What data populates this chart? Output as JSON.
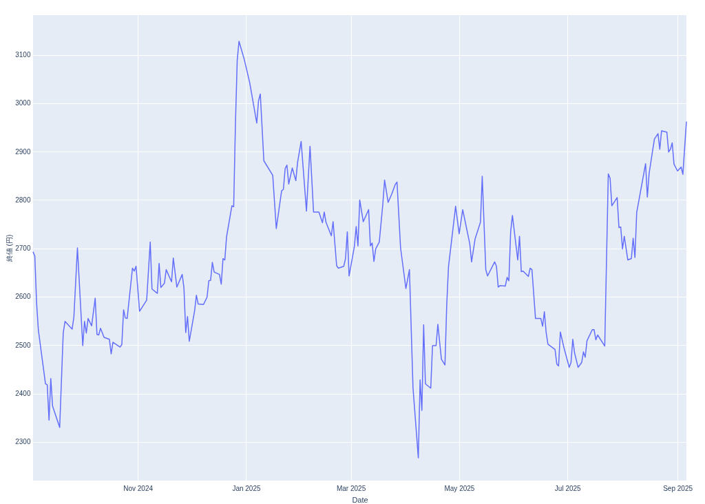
{
  "chart_data": {
    "type": "line",
    "xlabel": "Date",
    "ylabel": "終値 (円)",
    "grid": true,
    "line_style": "solid",
    "marker": "none",
    "xlim": [
      "2024-09-03",
      "2025-09-06"
    ],
    "xticks": [
      {
        "value": "2024-11-01",
        "label": "Nov 2024"
      },
      {
        "value": "2025-01-01",
        "label": "Jan 2025"
      },
      {
        "value": "2025-03-01",
        "label": "Mar 2025"
      },
      {
        "value": "2025-05-01",
        "label": "May 2025"
      },
      {
        "value": "2025-07-01",
        "label": "Jul 2025"
      },
      {
        "value": "2025-09-01",
        "label": "Sep 2025"
      }
    ],
    "ylim": [
      2220,
      3182
    ],
    "yticks": [
      2300,
      2400,
      2500,
      2600,
      2700,
      2800,
      2900,
      3000,
      3100
    ],
    "x": [
      "2024-09-03",
      "2024-09-04",
      "2024-09-05",
      "2024-09-06",
      "2024-09-10",
      "2024-09-11",
      "2024-09-12",
      "2024-09-13",
      "2024-09-14",
      "2024-09-18",
      "2024-09-20",
      "2024-09-21",
      "2024-09-25",
      "2024-09-26",
      "2024-09-28",
      "2024-10-01",
      "2024-10-02",
      "2024-10-03",
      "2024-10-04",
      "2024-10-06",
      "2024-10-08",
      "2024-10-09",
      "2024-10-10",
      "2024-10-11",
      "2024-10-13",
      "2024-10-16",
      "2024-10-17",
      "2024-10-18",
      "2024-10-22",
      "2024-10-23",
      "2024-10-24",
      "2024-10-25",
      "2024-10-26",
      "2024-10-29",
      "2024-10-30",
      "2024-10-31",
      "2024-11-02",
      "2024-11-06",
      "2024-11-08",
      "2024-11-09",
      "2024-11-12",
      "2024-11-13",
      "2024-11-14",
      "2024-11-16",
      "2024-11-17",
      "2024-11-20",
      "2024-11-21",
      "2024-11-23",
      "2024-11-26",
      "2024-11-27",
      "2024-11-28",
      "2024-11-29",
      "2024-11-30",
      "2024-12-03",
      "2024-12-04",
      "2024-12-05",
      "2024-12-08",
      "2024-12-10",
      "2024-12-11",
      "2024-12-12",
      "2024-12-13",
      "2024-12-14",
      "2024-12-17",
      "2024-12-18",
      "2024-12-19",
      "2024-12-20",
      "2024-12-21",
      "2024-12-24",
      "2024-12-25",
      "2024-12-26",
      "2024-12-27",
      "2024-12-28",
      "2024-12-31",
      "2025-01-03",
      "2025-01-07",
      "2025-01-08",
      "2025-01-09",
      "2025-01-11",
      "2025-01-16",
      "2025-01-18",
      "2025-01-21",
      "2025-01-22",
      "2025-01-23",
      "2025-01-24",
      "2025-01-25",
      "2025-01-27",
      "2025-01-29",
      "2025-01-30",
      "2025-02-01",
      "2025-02-04",
      "2025-02-06",
      "2025-02-08",
      "2025-02-11",
      "2025-02-13",
      "2025-02-14",
      "2025-02-15",
      "2025-02-18",
      "2025-02-19",
      "2025-02-21",
      "2025-02-22",
      "2025-02-25",
      "2025-02-26",
      "2025-02-27",
      "2025-02-28",
      "2025-03-03",
      "2025-03-04",
      "2025-03-05",
      "2025-03-06",
      "2025-03-08",
      "2025-03-11",
      "2025-03-12",
      "2025-03-13",
      "2025-03-14",
      "2025-03-15",
      "2025-03-17",
      "2025-03-19",
      "2025-03-20",
      "2025-03-22",
      "2025-03-24",
      "2025-03-26",
      "2025-03-27",
      "2025-03-29",
      "2025-04-01",
      "2025-04-03",
      "2025-04-05",
      "2025-04-08",
      "2025-04-09",
      "2025-04-10",
      "2025-04-11",
      "2025-04-12",
      "2025-04-15",
      "2025-04-16",
      "2025-04-18",
      "2025-04-19",
      "2025-04-21",
      "2025-04-23",
      "2025-04-24",
      "2025-04-25",
      "2025-04-29",
      "2025-05-01",
      "2025-05-03",
      "2025-05-07",
      "2025-05-08",
      "2025-05-10",
      "2025-05-13",
      "2025-05-14",
      "2025-05-16",
      "2025-05-17",
      "2025-05-21",
      "2025-05-22",
      "2025-05-23",
      "2025-05-24",
      "2025-05-27",
      "2025-05-28",
      "2025-05-29",
      "2025-05-30",
      "2025-05-31",
      "2025-06-03",
      "2025-06-04",
      "2025-06-05",
      "2025-06-06",
      "2025-06-09",
      "2025-06-10",
      "2025-06-11",
      "2025-06-13",
      "2025-06-16",
      "2025-06-17",
      "2025-06-18",
      "2025-06-19",
      "2025-06-20",
      "2025-06-24",
      "2025-06-25",
      "2025-06-26",
      "2025-06-27",
      "2025-06-29",
      "2025-07-02",
      "2025-07-03",
      "2025-07-04",
      "2025-07-05",
      "2025-07-07",
      "2025-07-09",
      "2025-07-10",
      "2025-07-11",
      "2025-07-12",
      "2025-07-15",
      "2025-07-16",
      "2025-07-17",
      "2025-07-18",
      "2025-07-22",
      "2025-07-24",
      "2025-07-25",
      "2025-07-26",
      "2025-07-29",
      "2025-07-30",
      "2025-07-31",
      "2025-08-01",
      "2025-08-02",
      "2025-08-04",
      "2025-08-06",
      "2025-08-07",
      "2025-08-08",
      "2025-08-09",
      "2025-08-14",
      "2025-08-15",
      "2025-08-16",
      "2025-08-18",
      "2025-08-19",
      "2025-08-21",
      "2025-08-22",
      "2025-08-23",
      "2025-08-26",
      "2025-08-27",
      "2025-08-28",
      "2025-08-29",
      "2025-08-30",
      "2025-09-01",
      "2025-09-03",
      "2025-09-04",
      "2025-09-06"
    ],
    "series": [
      {
        "color": "#636efa",
        "values": [
          2693,
          2684,
          2587,
          2531,
          2420,
          2418,
          2345,
          2431,
          2374,
          2330,
          2525,
          2549,
          2533,
          2558,
          2701,
          2499,
          2549,
          2525,
          2555,
          2540,
          2597,
          2522,
          2521,
          2535,
          2516,
          2512,
          2482,
          2506,
          2496,
          2501,
          2573,
          2556,
          2555,
          2659,
          2653,
          2663,
          2570,
          2593,
          2713,
          2616,
          2607,
          2669,
          2619,
          2628,
          2656,
          2631,
          2680,
          2620,
          2646,
          2618,
          2526,
          2559,
          2508,
          2571,
          2603,
          2585,
          2584,
          2599,
          2633,
          2634,
          2671,
          2651,
          2646,
          2626,
          2679,
          2676,
          2724,
          2788,
          2786,
          2958,
          3089,
          3128,
          3090,
          3043,
          2959,
          3005,
          3019,
          2881,
          2851,
          2741,
          2819,
          2822,
          2865,
          2872,
          2833,
          2866,
          2840,
          2878,
          2921,
          2777,
          2911,
          2775,
          2775,
          2753,
          2775,
          2754,
          2726,
          2755,
          2664,
          2659,
          2663,
          2679,
          2734,
          2643,
          2704,
          2745,
          2705,
          2800,
          2755,
          2780,
          2705,
          2711,
          2673,
          2699,
          2713,
          2791,
          2841,
          2795,
          2812,
          2832,
          2837,
          2701,
          2617,
          2656,
          2412,
          2267,
          2428,
          2365,
          2542,
          2420,
          2411,
          2499,
          2499,
          2543,
          2471,
          2459,
          2583,
          2662,
          2787,
          2730,
          2780,
          2709,
          2672,
          2720,
          2754,
          2849,
          2656,
          2643,
          2672,
          2663,
          2620,
          2623,
          2622,
          2640,
          2633,
          2734,
          2768,
          2676,
          2725,
          2652,
          2653,
          2642,
          2659,
          2656,
          2555,
          2555,
          2539,
          2569,
          2526,
          2502,
          2491,
          2461,
          2457,
          2527,
          2495,
          2454,
          2464,
          2512,
          2484,
          2454,
          2464,
          2486,
          2475,
          2509,
          2532,
          2532,
          2511,
          2521,
          2498,
          2854,
          2845,
          2788,
          2805,
          2743,
          2744,
          2699,
          2725,
          2676,
          2679,
          2721,
          2681,
          2774,
          2875,
          2806,
          2855,
          2903,
          2926,
          2937,
          2905,
          2943,
          2940,
          2899,
          2905,
          2918,
          2874,
          2860,
          2868,
          2853,
          2962
        ]
      }
    ]
  }
}
